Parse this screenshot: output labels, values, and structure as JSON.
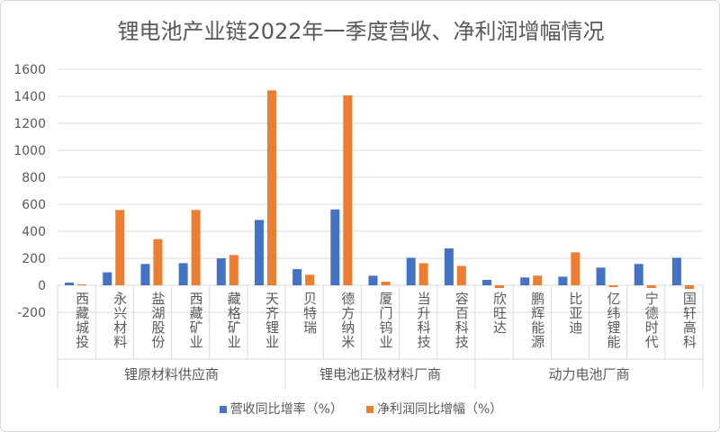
{
  "chart_data": {
    "type": "bar",
    "title": "锂电池产业链2022年一季度营收、净利润增幅情况",
    "categories": [
      "西藏城投",
      "永兴材料",
      "盐湖股份",
      "西藏矿业",
      "藏格矿业",
      "天齐锂业",
      "贝特瑞",
      "德方纳米",
      "厦门钨业",
      "当升科技",
      "容百科技",
      "欣旺达",
      "鹏辉能源",
      "比亚迪",
      "亿纬锂能",
      "宁德时代",
      "国轩高科"
    ],
    "groups": [
      {
        "label": "锂原材料供应商",
        "count": 6
      },
      {
        "label": "锂电池正极材料厂商",
        "count": 5
      },
      {
        "label": "动力电池厂商",
        "count": 6
      }
    ],
    "series": [
      {
        "name": "营收同比增率（%）",
        "color": "#4472c4",
        "values": [
          20,
          96,
          158,
          164,
          200,
          484,
          120,
          562,
          71,
          204,
          273,
          40,
          58,
          64,
          131,
          158,
          204
        ]
      },
      {
        "name": "净利润同比增幅（%）",
        "color": "#ed7d31",
        "values": [
          7,
          558,
          342,
          558,
          224,
          1444,
          78,
          1407,
          27,
          164,
          144,
          -20,
          71,
          244,
          -13,
          -20,
          -27
        ]
      }
    ],
    "ylim": [
      -200,
      1600
    ],
    "yticks": [
      -200,
      0,
      200,
      400,
      600,
      800,
      1000,
      1200,
      1400,
      1600
    ],
    "grid": true,
    "legend": "bottom"
  }
}
